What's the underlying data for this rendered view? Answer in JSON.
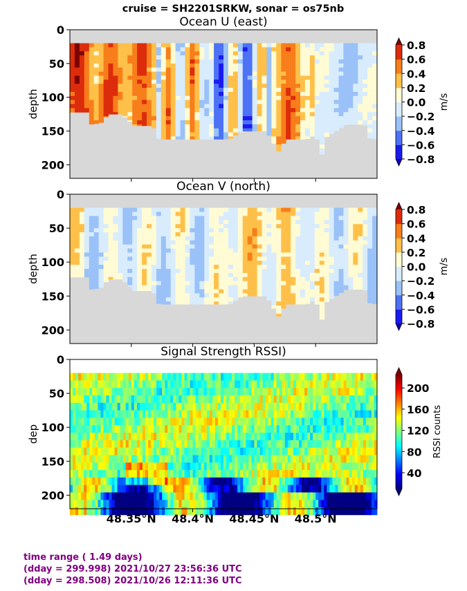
{
  "suptitle": "cruise = SH2201SRKW,  sonar = os75nb",
  "footer": {
    "line1": "time range ( 1.49 days)",
    "line2": "(dday = 299.998) 2021/10/27 23:56:36 UTC",
    "line3": "(dday = 298.508) 2021/10/26 12:11:36 UTC",
    "color": "#800080"
  },
  "chart_data": [
    {
      "type": "heatmap",
      "title": "Ocean U (east)",
      "ylabel": "depth",
      "yticks": [
        0,
        50,
        100,
        150,
        200
      ],
      "ylim": [
        220,
        0
      ],
      "xlim": [
        48.3,
        48.55
      ],
      "colorbar": {
        "label": "m/s",
        "ticks": [
          "0.8",
          "0.6",
          "0.4",
          "0.2",
          "0.0",
          "−0.2",
          "−0.4",
          "−0.6",
          "−0.8"
        ],
        "levels": [
          -0.8,
          -0.6,
          -0.4,
          -0.2,
          0.0,
          0.2,
          0.4,
          0.6,
          0.8
        ],
        "colors": [
          "#1a1af0",
          "#4d72f5",
          "#9ac2f8",
          "#d8ecfd",
          "#fffbd4",
          "#ffc04a",
          "#f77e1b",
          "#dd2c0c"
        ],
        "extend_low": "#1200b8",
        "extend_high": "#7a0404"
      },
      "mask_color": "#d8d8d8"
    },
    {
      "type": "heatmap",
      "title": "Ocean V (north)",
      "ylabel": "depth",
      "yticks": [
        0,
        50,
        100,
        150,
        200
      ],
      "ylim": [
        220,
        0
      ],
      "xlim": [
        48.3,
        48.55
      ],
      "colorbar": {
        "label": "m/s",
        "ticks": [
          "0.8",
          "0.6",
          "0.4",
          "0.2",
          "0.0",
          "−0.2",
          "−0.4",
          "−0.6",
          "−0.8"
        ],
        "levels": [
          -0.8,
          -0.6,
          -0.4,
          -0.2,
          0.0,
          0.2,
          0.4,
          0.6,
          0.8
        ],
        "colors": [
          "#1a1af0",
          "#4d72f5",
          "#9ac2f8",
          "#d8ecfd",
          "#fffbd4",
          "#ffc04a",
          "#f77e1b",
          "#dd2c0c"
        ],
        "extend_low": "#1200b8",
        "extend_high": "#7a0404"
      },
      "mask_color": "#d8d8d8"
    },
    {
      "type": "heatmap",
      "title": "Signal Strength RSSI)",
      "ylabel": "dep",
      "yticks": [
        0,
        50,
        100,
        150,
        200
      ],
      "ylim": [
        220,
        0
      ],
      "xlim": [
        48.3,
        48.55
      ],
      "xticks": [
        48.35,
        48.4,
        48.45,
        48.5
      ],
      "xticklabels": [
        "48.35°N",
        "48.4°N",
        "48.45°N",
        "48.5°N"
      ],
      "colorbar": {
        "label": "RSSI counts",
        "ticks": [
          "200",
          "160",
          "120",
          "80",
          "40"
        ],
        "tick_values": [
          200,
          160,
          120,
          80,
          40
        ],
        "range": [
          10,
          225
        ],
        "colormap": "jet"
      }
    }
  ]
}
